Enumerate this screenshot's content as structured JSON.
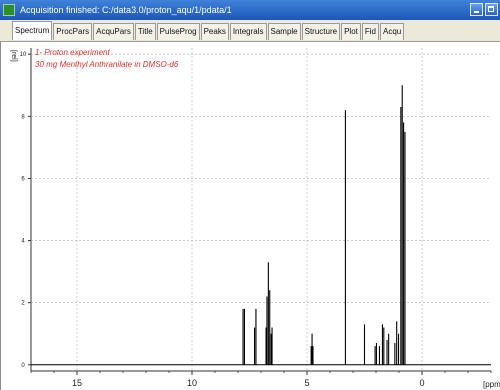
{
  "window": {
    "title": "Acquisition finished: C:/data3.0/proton_aqu/1/pdata/1"
  },
  "tabs": [
    "Spectrum",
    "ProcPars",
    "AcquPars",
    "Title",
    "PulseProg",
    "Peaks",
    "Integrals",
    "Sample",
    "Structure",
    "Plot",
    "Fid",
    "Acqu"
  ],
  "active_tab": "Spectrum",
  "annotation": {
    "line1": "1- Proton experiment",
    "line2": "30 mg Menthyl Anthranilate in DMSO-d6"
  },
  "colors": {
    "trace": "#000000",
    "annotation": "#e0322e",
    "grid": "#b0b0b0"
  },
  "chart_data": {
    "type": "line",
    "title": "",
    "xlabel": "[ppm]",
    "ylabel": "[rel]",
    "x_reversed": true,
    "xlim": [
      17,
      -3
    ],
    "ylim": [
      -0.2,
      10.2
    ],
    "x_ticks": [
      15,
      10,
      5,
      0
    ],
    "y_ticks": [
      0,
      2,
      4,
      6,
      8,
      10
    ],
    "grid": true,
    "series": [
      {
        "peaks": [
          {
            "ppm": 7.78,
            "height": 1.8
          },
          {
            "ppm": 7.72,
            "height": 1.8
          },
          {
            "ppm": 7.28,
            "height": 1.2
          },
          {
            "ppm": 7.22,
            "height": 1.8
          },
          {
            "ppm": 6.78,
            "height": 1.2
          },
          {
            "ppm": 6.74,
            "height": 2.2
          },
          {
            "ppm": 6.68,
            "height": 3.3
          },
          {
            "ppm": 6.62,
            "height": 2.4
          },
          {
            "ppm": 6.56,
            "height": 1.0
          },
          {
            "ppm": 6.52,
            "height": 1.2
          },
          {
            "ppm": 4.82,
            "height": 0.6
          },
          {
            "ppm": 4.78,
            "height": 1.0
          },
          {
            "ppm": 4.74,
            "height": 0.6
          },
          {
            "ppm": 3.33,
            "height": 8.2
          },
          {
            "ppm": 2.5,
            "height": 1.3
          },
          {
            "ppm": 2.04,
            "height": 0.6
          },
          {
            "ppm": 1.98,
            "height": 0.7
          },
          {
            "ppm": 1.85,
            "height": 0.6
          },
          {
            "ppm": 1.72,
            "height": 1.3
          },
          {
            "ppm": 1.66,
            "height": 1.2
          },
          {
            "ppm": 1.52,
            "height": 0.8
          },
          {
            "ppm": 1.45,
            "height": 1.0
          },
          {
            "ppm": 1.18,
            "height": 0.7
          },
          {
            "ppm": 1.1,
            "height": 1.4
          },
          {
            "ppm": 1.02,
            "height": 1.0
          },
          {
            "ppm": 0.92,
            "height": 8.3
          },
          {
            "ppm": 0.86,
            "height": 9.0
          },
          {
            "ppm": 0.8,
            "height": 7.8
          },
          {
            "ppm": 0.74,
            "height": 7.5
          }
        ]
      }
    ]
  }
}
